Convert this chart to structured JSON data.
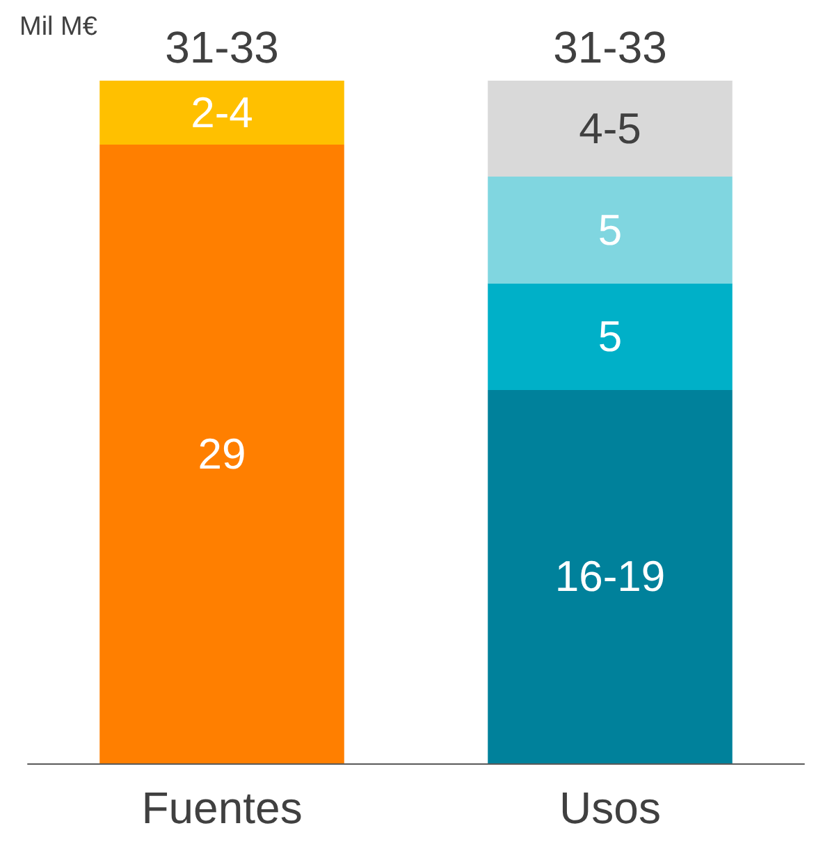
{
  "chart_data": {
    "type": "bar",
    "stacked": true,
    "ylabel": "Mil M€",
    "categories": [
      "Fuentes",
      "Usos"
    ],
    "series": [
      {
        "color": "#ff7f00",
        "values": [
          29,
          null
        ],
        "value_labels": [
          "29",
          null
        ]
      },
      {
        "color": "#ffc000",
        "values": [
          3,
          null
        ],
        "value_labels": [
          "2-4",
          null
        ]
      },
      {
        "color": "#00819b",
        "values": [
          null,
          17.5
        ],
        "value_labels": [
          null,
          "16-19"
        ]
      },
      {
        "color": "#00b0c8",
        "values": [
          null,
          5
        ],
        "value_labels": [
          null,
          "5"
        ]
      },
      {
        "color": "#80d6e0",
        "values": [
          null,
          5
        ],
        "value_labels": [
          null,
          "5"
        ]
      },
      {
        "color": "#d9d9d9",
        "values": [
          null,
          4.5
        ],
        "value_labels": [
          null,
          "4-5"
        ]
      }
    ],
    "totals": [
      "31-33",
      "31-33"
    ]
  }
}
